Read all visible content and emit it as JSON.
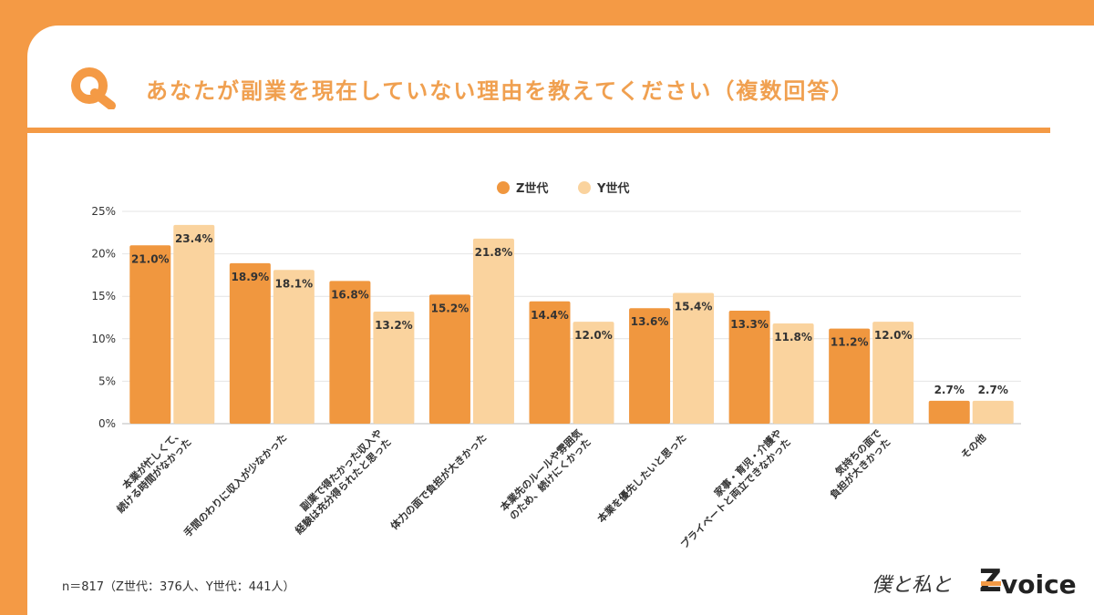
{
  "header": {
    "title": "あなたが副業を現在していない理由を教えてください（複数回答）"
  },
  "colors": {
    "z": "#F0973F",
    "y": "#FAD39E",
    "accent": "#F49A45"
  },
  "footnote": "n＝817（Z世代：376人、Y世代：441人）",
  "logo": {
    "script": "僕と私と",
    "z": "Z",
    "voice": "voice"
  },
  "chart_data": {
    "type": "bar",
    "title": "あなたが副業を現在していない理由を教えてください（複数回答）",
    "legend_position": "top-center",
    "ylim": [
      0,
      25
    ],
    "y_ticks": [
      "0%",
      "5%",
      "10%",
      "15%",
      "20%",
      "25%"
    ],
    "grid": true,
    "categories": [
      [
        "本業が忙しくて、",
        "続ける時間がなかった"
      ],
      [
        "手間のわりに収入が少なかった"
      ],
      [
        "副業で得たかった収入や",
        "経験は充分得られたと思った"
      ],
      [
        "体力の面で負担が大きかった"
      ],
      [
        "本業先のルールや雰囲気",
        "のため、続けにくかった"
      ],
      [
        "本業を優先したいと思った"
      ],
      [
        "家事・育児・介護や",
        "プライベートと両立できなかった"
      ],
      [
        "気持ちの面で",
        "負担が大きかった"
      ],
      [
        "その他"
      ]
    ],
    "series": [
      {
        "name": "Z世代",
        "values": [
          21.0,
          18.9,
          16.8,
          15.2,
          14.4,
          13.6,
          13.3,
          11.2,
          2.7
        ],
        "labels": [
          "21.0%",
          "18.9%",
          "16.8%",
          "15.2%",
          "14.4%",
          "13.6%",
          "13.3%",
          "11.2%",
          "2.7%"
        ]
      },
      {
        "name": "Y世代",
        "values": [
          23.4,
          18.1,
          13.2,
          21.8,
          12.0,
          15.4,
          11.8,
          12.0,
          2.7
        ],
        "labels": [
          "23.4%",
          "18.1%",
          "13.2%",
          "21.8%",
          "12.0%",
          "15.4%",
          "11.8%",
          "12.0%",
          "2.7%"
        ]
      }
    ]
  }
}
